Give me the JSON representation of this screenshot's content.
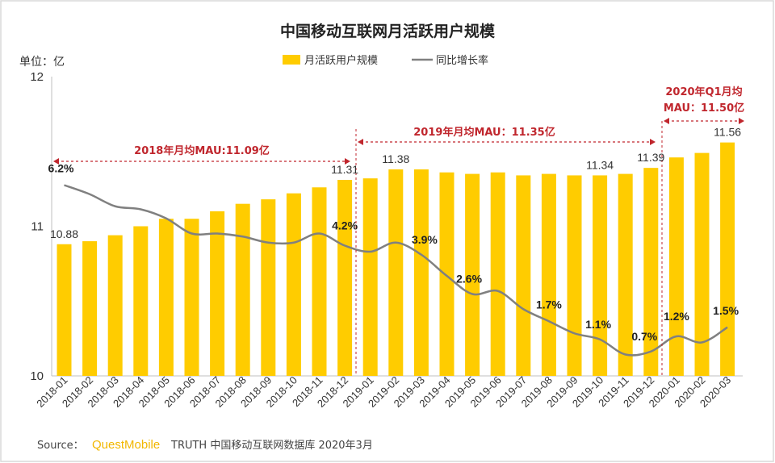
{
  "chart_data": {
    "type": "bar",
    "title": "中国移动互联网月活跃用户规模",
    "unit_label": "单位：亿",
    "categories": [
      "2018-01",
      "2018-02",
      "2018-03",
      "2018-04",
      "2018-05",
      "2018-06",
      "2018-07",
      "2018-08",
      "2018-09",
      "2018-10",
      "2018-11",
      "2018-12",
      "2019-01",
      "2019-02",
      "2019-03",
      "2019-04",
      "2019-05",
      "2019-06",
      "2019-07",
      "2019-08",
      "2019-09",
      "2019-10",
      "2019-11",
      "2019-12",
      "2020-01",
      "2020-02",
      "2020-03"
    ],
    "ylim": [
      10,
      12
    ],
    "yticks": [
      "10",
      "11",
      "12"
    ],
    "legend_placement": "top-center",
    "series": [
      {
        "name": "月活跃用户规模",
        "type": "bar",
        "color": "#ffcc00",
        "values": [
          10.88,
          10.9,
          10.94,
          11.0,
          11.05,
          11.05,
          11.1,
          11.15,
          11.18,
          11.22,
          11.26,
          11.31,
          11.32,
          11.38,
          11.38,
          11.36,
          11.35,
          11.36,
          11.34,
          11.35,
          11.34,
          11.34,
          11.35,
          11.39,
          11.46,
          11.49,
          11.56
        ]
      },
      {
        "name": "同比增长率",
        "type": "line",
        "color": "#808080",
        "values": [
          6.2,
          5.9,
          5.5,
          5.4,
          5.1,
          4.6,
          4.6,
          4.5,
          4.3,
          4.3,
          4.6,
          4.2,
          4.0,
          4.3,
          3.9,
          3.2,
          2.6,
          2.7,
          2.1,
          1.7,
          1.3,
          1.1,
          0.6,
          0.7,
          1.2,
          1.0,
          1.5
        ]
      }
    ],
    "value_labels": [
      {
        "index": 0,
        "text": "10.88"
      },
      {
        "index": 11,
        "text": "11.31"
      },
      {
        "index": 13,
        "text": "11.38"
      },
      {
        "index": 21,
        "text": "11.34"
      },
      {
        "index": 23,
        "text": "11.39"
      },
      {
        "index": 26,
        "text": "11.56"
      }
    ],
    "growth_labels": [
      {
        "index": 0,
        "text": "6.2%"
      },
      {
        "index": 11,
        "text": "4.2%"
      },
      {
        "index": 14,
        "text": "3.9%"
      },
      {
        "index": 16,
        "text": "2.6%"
      },
      {
        "index": 19,
        "text": "1.7%"
      },
      {
        "index": 21,
        "text": "1.1%"
      },
      {
        "index": 23,
        "text": "0.7%"
      },
      {
        "index": 24,
        "text": "1.2%"
      },
      {
        "index": 26,
        "text": "1.5%"
      }
    ],
    "annotations": [
      {
        "text": "2018年月均MAU:11.09亿",
        "from": 0,
        "to": 11
      },
      {
        "text": "2019年月均MAU：11.35亿",
        "from": 12,
        "to": 23
      },
      {
        "text": "2020年Q1月均\nMAU：11.50亿",
        "from": 24,
        "to": 26
      }
    ],
    "annotation_color": "#c0262d"
  },
  "source": {
    "label": "Source：",
    "brand": "QuestMobile",
    "text": "TRUTH 中国移动互联网数据库 2020年3月"
  }
}
